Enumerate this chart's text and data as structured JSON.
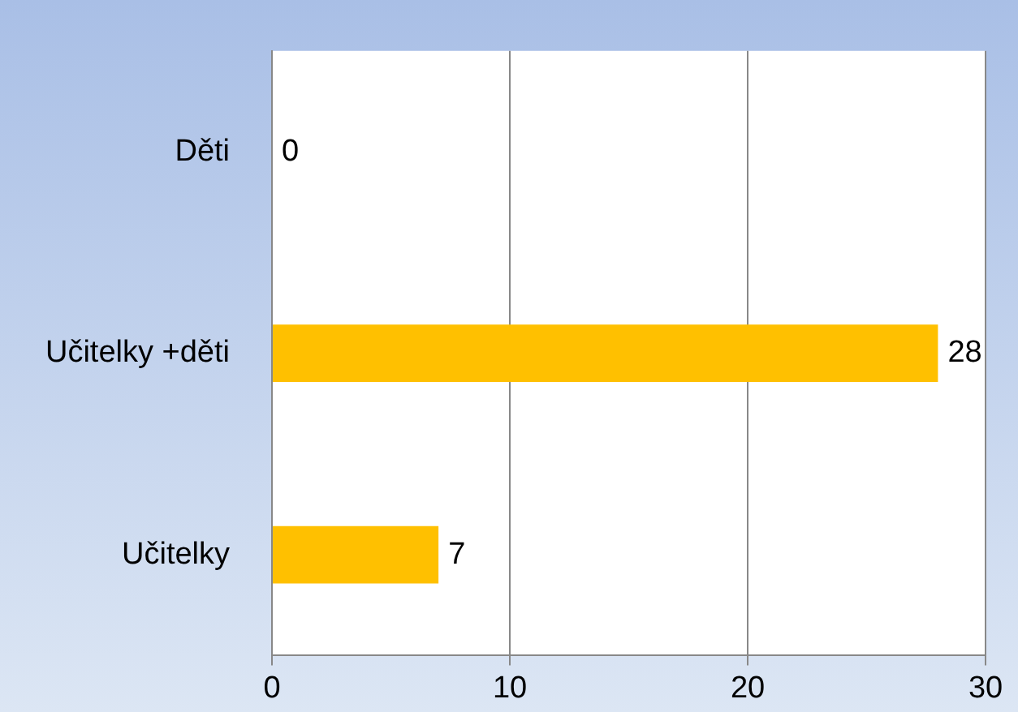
{
  "chart_data": {
    "type": "bar",
    "orientation": "horizontal",
    "categories": [
      "Děti",
      "Učitelky +děti",
      "Učitelky"
    ],
    "values": [
      0,
      28,
      7
    ],
    "color": "#ffc000",
    "xlim": [
      0,
      30
    ],
    "xticks": [
      0,
      10,
      20,
      30
    ],
    "grid": "x",
    "data_labels": true,
    "legend": false
  }
}
